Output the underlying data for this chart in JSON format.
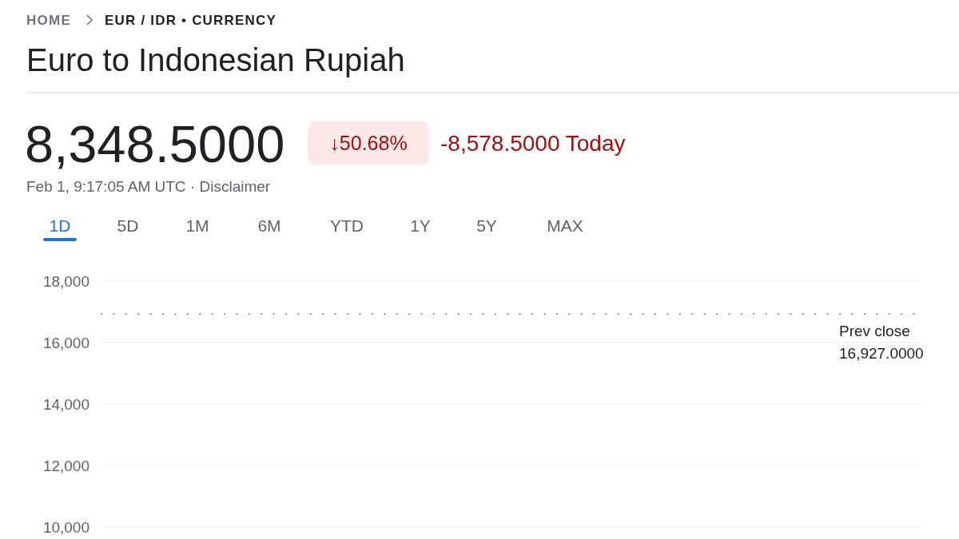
{
  "chart_data": {
    "type": "line",
    "title": "Euro to Indonesian Rupiah",
    "subtitle": "8,348.5000",
    "annotations": [
      "HOME",
      "EUR / IDR • CURRENCY",
      "↓50.68%",
      "-8,578.5000 Today",
      "Feb 1, 9:17:05 AM UTC · Disclaimer",
      "1D",
      "5D",
      "1M",
      "6M",
      "YTD",
      "1Y",
      "5Y",
      "MAX"
    ],
    "categories": [
      null,
      null
    ],
    "ylim": [
      10000,
      18000
    ],
    "yticks": [
      {
        "value": 10000,
        "label": "10,000"
      },
      {
        "value": 12000,
        "label": "12,000"
      },
      {
        "value": 14000,
        "label": "14,000"
      },
      {
        "value": 16000,
        "label": "16,000"
      },
      {
        "value": 18000,
        "label": "18,000"
      }
    ],
    "grid": "y",
    "ref_lines": [
      {
        "axis": "y",
        "value": 16927,
        "label": "Prev close\n16,927.0000",
        "color": "#70757a",
        "line_style": "dotted"
      }
    ]
  }
}
